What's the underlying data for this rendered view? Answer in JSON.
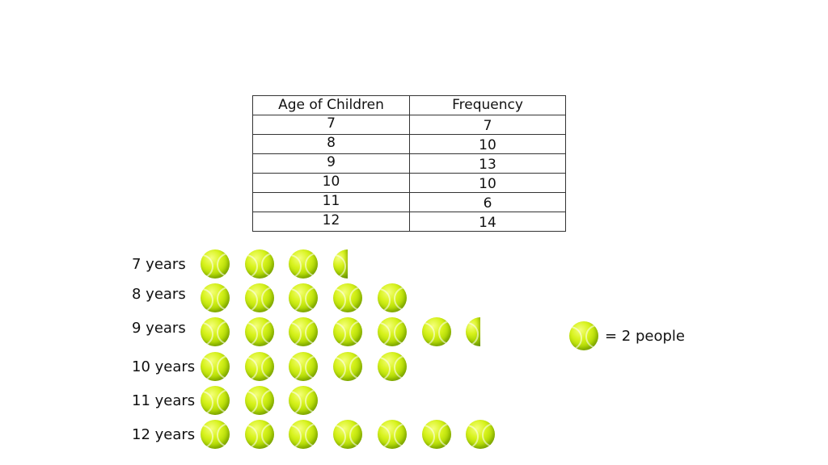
{
  "table": {
    "headers": [
      "Age of Children",
      "Frequency"
    ],
    "rows": [
      {
        "age": "7",
        "frequency": "7"
      },
      {
        "age": "8",
        "frequency": "10"
      },
      {
        "age": "9",
        "frequency": "13"
      },
      {
        "age": "10",
        "frequency": "10"
      },
      {
        "age": "11",
        "frequency": "6"
      },
      {
        "age": "12",
        "frequency": "14"
      }
    ]
  },
  "chart_data": {
    "type": "pictogram",
    "symbol": "tennis-ball-icon",
    "symbol_color": "#c6e80a",
    "key_value": 2,
    "key_label": "= 2 people",
    "categories": [
      "7 years",
      "8 years",
      "9 years",
      "10 years",
      "11 years",
      "12 years"
    ],
    "values": [
      7,
      10,
      13,
      10,
      6,
      14
    ]
  }
}
